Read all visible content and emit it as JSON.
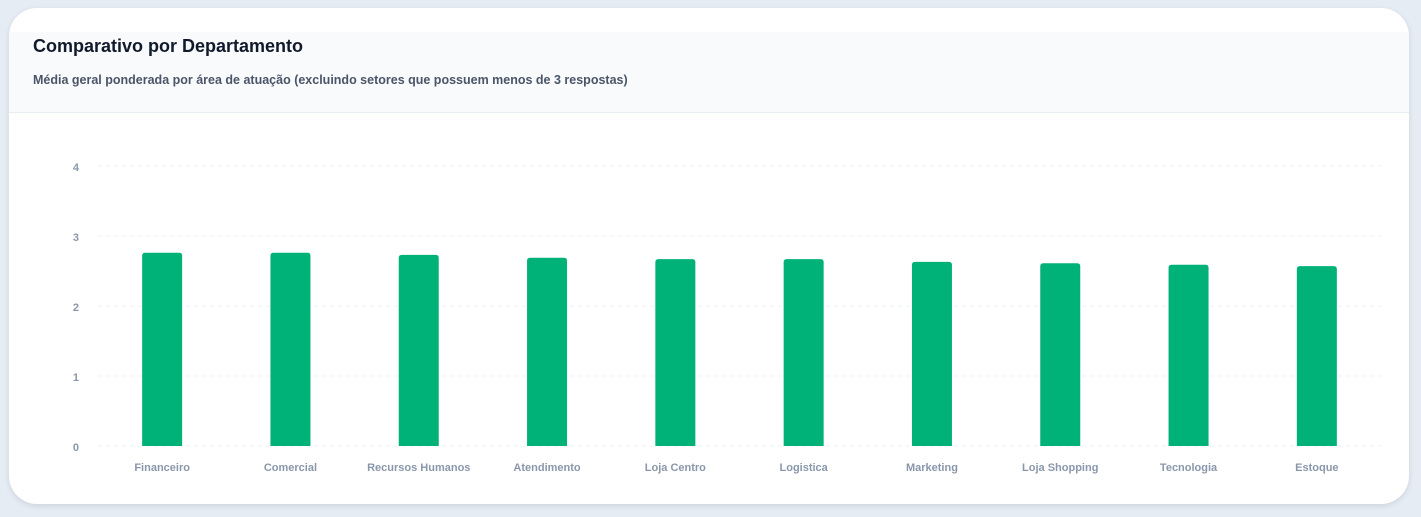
{
  "chart_data": {
    "type": "bar",
    "title": "Comparativo por Departamento",
    "subtitle": "Média geral ponderada por área de atuação (excluindo setores que possuem menos de 3 respostas)",
    "categories": [
      "Financeiro",
      "Comercial",
      "Recursos Humanos",
      "Atendimento",
      "Loja Centro",
      "Logistica",
      "Marketing",
      "Loja Shopping",
      "Tecnologia",
      "Estoque"
    ],
    "values": [
      2.76,
      2.76,
      2.73,
      2.69,
      2.67,
      2.67,
      2.63,
      2.61,
      2.59,
      2.57
    ],
    "color": "#00b277",
    "ylim": [
      0,
      4
    ],
    "yticks": [
      0,
      1,
      2,
      3,
      4
    ],
    "grid": true
  }
}
